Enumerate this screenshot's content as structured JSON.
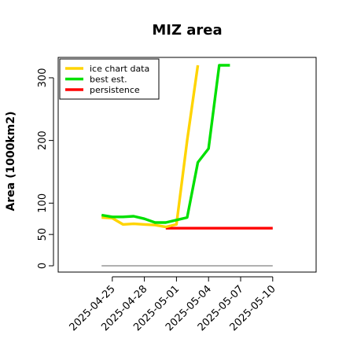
{
  "chart_data": {
    "type": "line",
    "title": "MIZ area",
    "xlabel": "",
    "ylabel": "Area (1000km2)",
    "ylim": [
      0,
      320
    ],
    "xlim": [
      "2025-04-22",
      "2025-05-12"
    ],
    "yticks": [
      0,
      50,
      100,
      200,
      300
    ],
    "xticks": [
      "2025-04-25",
      "2025-04-28",
      "2025-05-01",
      "2025-05-04",
      "2025-05-07",
      "2025-05-10"
    ],
    "grid": false,
    "legend_position": "top-left",
    "series": [
      {
        "name": "ice chart data",
        "color": "#FFD400",
        "x": [
          "2025-04-24",
          "2025-04-25",
          "2025-04-26",
          "2025-04-27",
          "2025-04-28",
          "2025-04-29",
          "2025-04-30",
          "2025-05-01",
          "2025-05-02",
          "2025-05-03"
        ],
        "values": [
          77,
          76,
          66,
          67,
          66,
          65,
          62,
          66,
          200,
          320
        ]
      },
      {
        "name": "best est.",
        "color": "#00E000",
        "x": [
          "2025-04-24",
          "2025-04-25",
          "2025-04-26",
          "2025-04-27",
          "2025-04-28",
          "2025-04-29",
          "2025-04-30",
          "2025-05-01",
          "2025-05-02",
          "2025-05-03",
          "2025-05-04",
          "2025-05-05",
          "2025-05-06"
        ],
        "values": [
          81,
          78,
          78,
          79,
          75,
          69,
          69,
          73,
          77,
          165,
          187,
          320,
          320
        ]
      },
      {
        "name": "persistence",
        "color": "#FF0000",
        "x": [
          "2025-04-30",
          "2025-05-10"
        ],
        "values": [
          60,
          60
        ]
      }
    ]
  }
}
